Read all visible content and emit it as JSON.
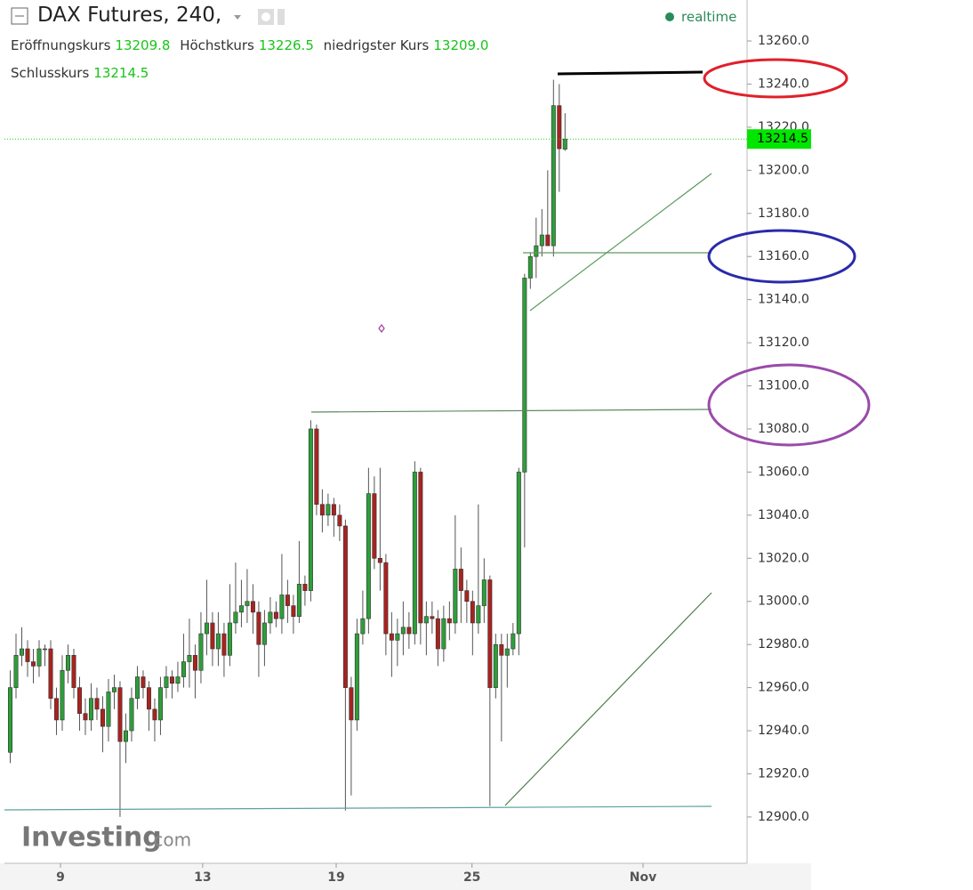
{
  "chart_data": {
    "type": "candlestick",
    "title": "DAX Futures, 240,",
    "realtime": "realtime",
    "brand": "Investing",
    "brand_suffix": ".com",
    "readout": {
      "labels": [
        "Eröffnungskurs",
        "Höchstkurs",
        "niedrigster Kurs",
        "Schlusskurs"
      ],
      "value_labels": [
        "13209.8",
        "13226.5",
        "13209.0",
        "13214.5"
      ]
    },
    "up_color": "#2e9e3a",
    "down_color": "#a8231f",
    "x": [
      0,
      1,
      2,
      3,
      4,
      5,
      6,
      7,
      8,
      9,
      10,
      11,
      12,
      13,
      14,
      15,
      16,
      17,
      18,
      19,
      20,
      21,
      22,
      23,
      24,
      25,
      26,
      27,
      28,
      29,
      30,
      31,
      32,
      33,
      34,
      35,
      36,
      37,
      38,
      39,
      40,
      41,
      42,
      43,
      44,
      45,
      46,
      47,
      48,
      49,
      50,
      51,
      52,
      53,
      54,
      55,
      56,
      57,
      58,
      59,
      60,
      61,
      62,
      63,
      64,
      65,
      66,
      67,
      68,
      69,
      70,
      71,
      72,
      73,
      74,
      75,
      76,
      77,
      78,
      79,
      80,
      81,
      82,
      83,
      84,
      85,
      86,
      87,
      88,
      89,
      90,
      91,
      92,
      93,
      94,
      95,
      96
    ],
    "open": [
      12930,
      12960,
      12975,
      12978,
      12972,
      12970,
      12978,
      12978,
      12955,
      12945,
      12968,
      12975,
      12960,
      12948,
      12945,
      12955,
      12950,
      12942,
      12958,
      12960,
      12935,
      12940,
      12955,
      12965,
      12960,
      12950,
      12945,
      12960,
      12965,
      12962,
      12965,
      12972,
      12975,
      12968,
      12985,
      12990,
      12978,
      12985,
      12975,
      12990,
      12995,
      12998,
      13000,
      12995,
      12980,
      12990,
      12995,
      12992,
      13003,
      12998,
      12993,
      13008,
      13005,
      13080,
      13045,
      13040,
      13045,
      13040,
      13035,
      12960,
      12945,
      12985,
      12992,
      13050,
      13020,
      13018,
      12985,
      12982,
      12985,
      12988,
      12985,
      13060,
      12990,
      12993,
      12992,
      12978,
      12992,
      12990,
      13015,
      13005,
      13000,
      12990,
      12998,
      13010,
      12960,
      12980,
      12975,
      12978,
      12985,
      13060,
      13150,
      13160,
      13165,
      13170,
      13165,
      13230,
      13209.8
    ],
    "high": [
      12968,
      12985,
      12988,
      12982,
      12978,
      12982,
      12980,
      12982,
      12960,
      12975,
      12980,
      12978,
      12965,
      12955,
      12962,
      12960,
      12956,
      12964,
      12966,
      12963,
      12948,
      12960,
      12970,
      12968,
      12963,
      12955,
      12965,
      12970,
      12968,
      12972,
      12985,
      12992,
      12980,
      12995,
      13010,
      12995,
      12995,
      12990,
      13008,
      13018,
      13010,
      13015,
      13008,
      13000,
      12996,
      13002,
      13000,
      13022,
      13010,
      13003,
      13028,
      13012,
      13084,
      13082,
      13052,
      13050,
      13048,
      13045,
      13038,
      12965,
      12992,
      13005,
      13062,
      13058,
      13062,
      13022,
      12995,
      12992,
      13000,
      12995,
      13065,
      13062,
      13000,
      13000,
      12996,
      12998,
      13000,
      13040,
      13025,
      13010,
      13005,
      13045,
      13020,
      13012,
      12985,
      12985,
      12985,
      12990,
      13062,
      13152,
      13162,
      13178,
      13182,
      13200,
      13242,
      13240,
      13226.5
    ],
    "low": [
      12925,
      12955,
      12970,
      12965,
      12962,
      12965,
      12970,
      12950,
      12938,
      12940,
      12962,
      12955,
      12940,
      12938,
      12940,
      12945,
      12930,
      12935,
      12950,
      12900,
      12925,
      12935,
      12950,
      12955,
      12940,
      12935,
      12938,
      12955,
      12955,
      12958,
      12960,
      12960,
      12955,
      12962,
      12975,
      12970,
      12970,
      12965,
      12970,
      12985,
      12988,
      12990,
      12985,
      12965,
      12970,
      12985,
      12988,
      12985,
      12990,
      12985,
      12990,
      12998,
      13000,
      13040,
      13032,
      13035,
      13030,
      13028,
      12903,
      12910,
      12940,
      12980,
      12985,
      13015,
      13005,
      12975,
      12965,
      12970,
      12975,
      12978,
      12980,
      12980,
      12975,
      12985,
      12970,
      12972,
      12982,
      12985,
      12990,
      12990,
      12975,
      12985,
      12990,
      12905,
      12955,
      12935,
      12960,
      12975,
      12975,
      13025,
      13145,
      13150,
      13160,
      13167,
      13160,
      13190,
      13209.0
    ],
    "close": [
      12960,
      12975,
      12978,
      12972,
      12970,
      12978,
      12978,
      12955,
      12945,
      12968,
      12975,
      12960,
      12948,
      12945,
      12955,
      12950,
      12942,
      12958,
      12960,
      12935,
      12940,
      12955,
      12965,
      12960,
      12950,
      12945,
      12960,
      12965,
      12962,
      12965,
      12972,
      12975,
      12968,
      12985,
      12990,
      12978,
      12985,
      12975,
      12990,
      12995,
      12998,
      13000,
      12995,
      12980,
      12990,
      12995,
      12992,
      13003,
      12998,
      12993,
      13008,
      13005,
      13080,
      13045,
      13040,
      13045,
      13040,
      13035,
      12960,
      12945,
      12985,
      12992,
      13050,
      13020,
      13018,
      12985,
      12982,
      12985,
      12988,
      12985,
      13060,
      12990,
      12993,
      12992,
      12978,
      12992,
      12990,
      13015,
      13005,
      13000,
      12990,
      12998,
      13010,
      12960,
      12980,
      12975,
      12978,
      12985,
      13060,
      13150,
      13160,
      13165,
      13170,
      13165,
      13230,
      13210,
      13214.5
    ],
    "xlim": [
      -1,
      127.5
    ],
    "xticks": [
      {
        "value": 8.7,
        "label": "9"
      },
      {
        "value": 33.3,
        "label": "13"
      },
      {
        "value": 56.4,
        "label": "19"
      },
      {
        "value": 79.9,
        "label": "25"
      },
      {
        "value": 109.5,
        "label": "Nov"
      }
    ],
    "ylim": [
      12878.5,
      13279
    ],
    "yticks": [
      {
        "value": 12900,
        "label": "12900.0"
      },
      {
        "value": 12920,
        "label": "12920.0"
      },
      {
        "value": 12940,
        "label": "12940.0"
      },
      {
        "value": 12960,
        "label": "12960.0"
      },
      {
        "value": 12980,
        "label": "12980.0"
      },
      {
        "value": 13000,
        "label": "13000.0"
      },
      {
        "value": 13020,
        "label": "13020.0"
      },
      {
        "value": 13040,
        "label": "13040.0"
      },
      {
        "value": 13060,
        "label": "13060.0"
      },
      {
        "value": 13080,
        "label": "13080.0"
      },
      {
        "value": 13100,
        "label": "13100.0"
      },
      {
        "value": 13120,
        "label": "13120.0"
      },
      {
        "value": 13140,
        "label": "13140.0"
      },
      {
        "value": 13160,
        "label": "13160.0"
      },
      {
        "value": 13180,
        "label": "13180.0"
      },
      {
        "value": 13200,
        "label": "13200.0"
      },
      {
        "value": 13220,
        "label": "13220.0"
      },
      {
        "value": 13240,
        "label": "13240.0"
      },
      {
        "value": 13260,
        "label": "13260.0"
      }
    ],
    "last_price_label": "13214.5"
  }
}
